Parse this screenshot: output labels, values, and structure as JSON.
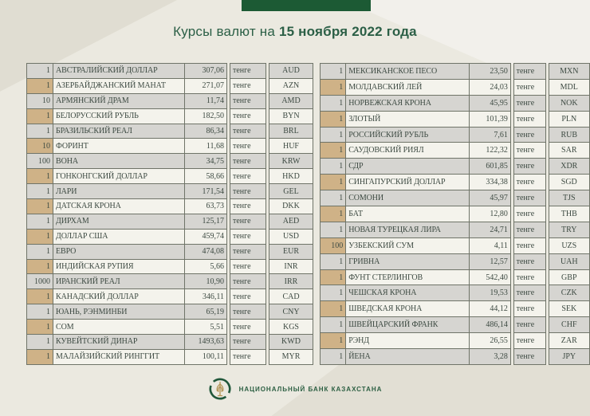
{
  "page": {
    "title_prefix": "Курсы валют на ",
    "title_date": "15 ноября 2022 года",
    "unit_label": "тенге",
    "footer_bank_name": "НАЦИОНАЛЬНЫЙ БАНК КАЗАХСТАНА"
  },
  "colors": {
    "page_background": "#ebe9e0",
    "top_bar_green": "#1c5a34",
    "title_green": "#2b5f46",
    "row_gray": "#d6d5d1",
    "row_light": "#f4f3ec",
    "quantity_tan": "#cfb287",
    "cell_border": "#6f7468",
    "table_text": "#3d4a42",
    "footer_green": "#2c5f42",
    "logo_gold": "#b39455"
  },
  "left_table": {
    "rows": [
      {
        "qty": "1",
        "name": "АВСТРАЛИЙСКИЙ ДОЛЛАР",
        "value": "307,06",
        "code": "AUD"
      },
      {
        "qty": "1",
        "name": "АЗЕРБАЙДЖАНСКИЙ МАНАТ",
        "value": "271,07",
        "code": "AZN"
      },
      {
        "qty": "10",
        "name": "АРМЯНСКИЙ ДРАМ",
        "value": "11,74",
        "code": "AMD"
      },
      {
        "qty": "1",
        "name": "БЕЛОРУССКИЙ РУБЛЬ",
        "value": "182,50",
        "code": "BYN"
      },
      {
        "qty": "1",
        "name": "БРАЗИЛЬСКИЙ РЕАЛ",
        "value": "86,34",
        "code": "BRL"
      },
      {
        "qty": "10",
        "name": "ФОРИНТ",
        "value": "11,68",
        "code": "HUF"
      },
      {
        "qty": "100",
        "name": "ВОНА",
        "value": "34,75",
        "code": "KRW"
      },
      {
        "qty": "1",
        "name": "ГОНКОНГСКИЙ ДОЛЛАР",
        "value": "58,66",
        "code": "HKD"
      },
      {
        "qty": "1",
        "name": "ЛАРИ",
        "value": "171,54",
        "code": "GEL"
      },
      {
        "qty": "1",
        "name": "ДАТСКАЯ КРОНА",
        "value": "63,73",
        "code": "DKK"
      },
      {
        "qty": "1",
        "name": "ДИРХАМ",
        "value": "125,17",
        "code": "AED"
      },
      {
        "qty": "1",
        "name": "ДОЛЛАР США",
        "value": "459,74",
        "code": "USD"
      },
      {
        "qty": "1",
        "name": "ЕВРО",
        "value": "474,08",
        "code": "EUR"
      },
      {
        "qty": "1",
        "name": "ИНДИЙСКАЯ РУПИЯ",
        "value": "5,66",
        "code": "INR"
      },
      {
        "qty": "1000",
        "name": "ИРАНСКИЙ РЕАЛ",
        "value": "10,90",
        "code": "IRR"
      },
      {
        "qty": "1",
        "name": "КАНАДСКИЙ ДОЛЛАР",
        "value": "346,11",
        "code": "CAD"
      },
      {
        "qty": "1",
        "name": "ЮАНЬ, РЭНМИНБИ",
        "value": "65,19",
        "code": "CNY"
      },
      {
        "qty": "1",
        "name": "СОМ",
        "value": "5,51",
        "code": "KGS"
      },
      {
        "qty": "1",
        "name": "КУВЕЙТСКИЙ ДИНАР",
        "value": "1493,63",
        "code": "KWD"
      },
      {
        "qty": "1",
        "name": "МАЛАЙЗИЙСКИЙ РИНГГИТ",
        "value": "100,11",
        "code": "MYR"
      }
    ]
  },
  "right_table": {
    "rows": [
      {
        "qty": "1",
        "name": "МЕКСИКАНСКОЕ ПЕСО",
        "value": "23,50",
        "code": "MXN"
      },
      {
        "qty": "1",
        "name": "МОЛДАВСКИЙ ЛЕЙ",
        "value": "24,03",
        "code": "MDL"
      },
      {
        "qty": "1",
        "name": "НОРВЕЖСКАЯ КРОНА",
        "value": "45,95",
        "code": "NOK"
      },
      {
        "qty": "1",
        "name": "ЗЛОТЫЙ",
        "value": "101,39",
        "code": "PLN"
      },
      {
        "qty": "1",
        "name": "РОССИЙСКИЙ РУБЛЬ",
        "value": "7,61",
        "code": "RUB"
      },
      {
        "qty": "1",
        "name": "САУДОВСКИЙ РИЯЛ",
        "value": "122,32",
        "code": "SAR"
      },
      {
        "qty": "1",
        "name": "СДР",
        "value": "601,85",
        "code": "XDR"
      },
      {
        "qty": "1",
        "name": "СИНГАПУРСКИЙ ДОЛЛАР",
        "value": "334,38",
        "code": "SGD"
      },
      {
        "qty": "1",
        "name": "СОМОНИ",
        "value": "45,97",
        "code": "TJS"
      },
      {
        "qty": "1",
        "name": "БАТ",
        "value": "12,80",
        "code": "THB"
      },
      {
        "qty": "1",
        "name": "НОВАЯ ТУРЕЦКАЯ ЛИРА",
        "value": "24,71",
        "code": "TRY"
      },
      {
        "qty": "100",
        "name": "УЗБЕКСКИЙ СУМ",
        "value": "4,11",
        "code": "UZS"
      },
      {
        "qty": "1",
        "name": "ГРИВНА",
        "value": "12,57",
        "code": "UAH"
      },
      {
        "qty": "1",
        "name": "ФУНТ СТЕРЛИНГОВ",
        "value": "542,40",
        "code": "GBP"
      },
      {
        "qty": "1",
        "name": "ЧЕШСКАЯ КРОНА",
        "value": "19,53",
        "code": "CZK"
      },
      {
        "qty": "1",
        "name": "ШВЕДСКАЯ КРОНА",
        "value": "44,12",
        "code": "SEK"
      },
      {
        "qty": "1",
        "name": "ШВЕЙЦАРСКИЙ ФРАНК",
        "value": "486,14",
        "code": "CHF"
      },
      {
        "qty": "1",
        "name": "РЭНД",
        "value": "26,55",
        "code": "ZAR"
      },
      {
        "qty": "1",
        "name": "ЙЕНА",
        "value": "3,28",
        "code": "JPY"
      }
    ]
  }
}
